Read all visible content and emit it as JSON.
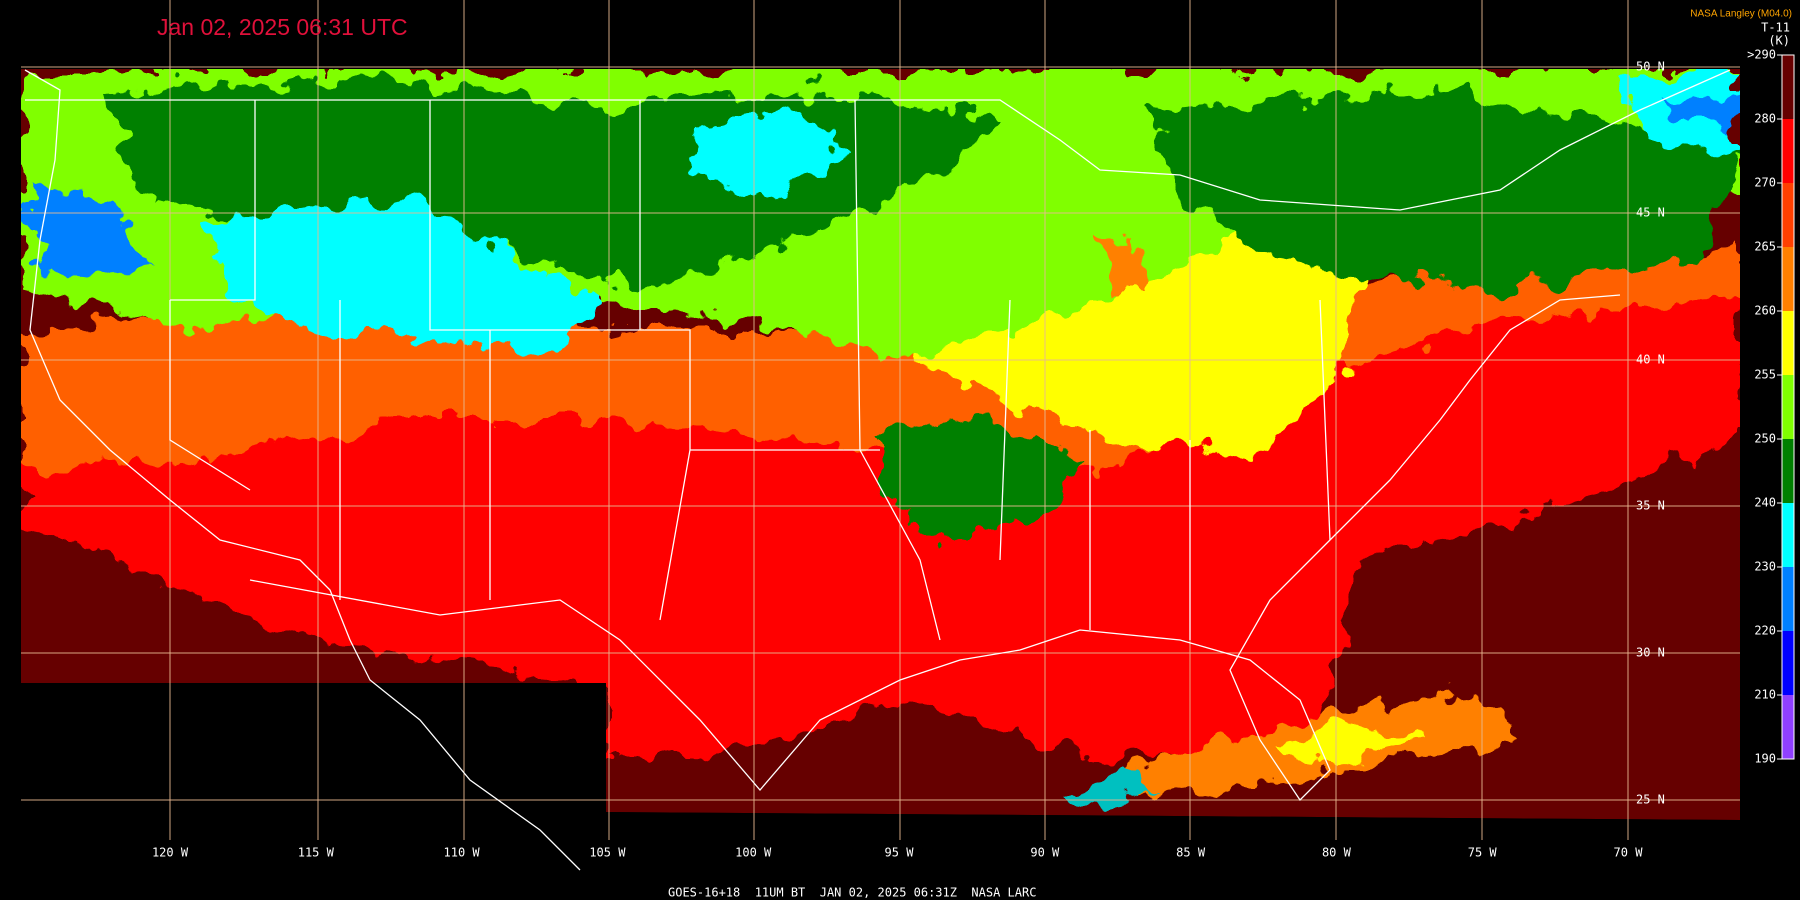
{
  "header": {
    "title": "Jan 02, 2025 06:31 UTC",
    "agency": "NASA Langley (M04.0)"
  },
  "colorbar": {
    "channel": "T-11",
    "unit": "(K)",
    "ticks": [
      {
        "value": 290,
        "label": ">290"
      },
      280,
      270,
      265,
      260,
      255,
      250,
      240,
      230,
      220,
      210,
      190
    ],
    "colors": [
      "#660000",
      "#ff0000",
      "#ff4000",
      "#ff8000",
      "#ffff00",
      "#80ff00",
      "#008000",
      "#00ffff",
      "#0080ff",
      "#0000ff",
      "#9040ff"
    ]
  },
  "grid": {
    "latitudes": [
      "50 N",
      "45 N",
      "40 N",
      "35 N",
      "30 N",
      "25 N"
    ],
    "longitudes": [
      "120 W",
      "115 W",
      "110 W",
      "105 W",
      "100 W",
      "95 W",
      "90 W",
      "85 W",
      "80 W",
      "75 W",
      "70 W"
    ]
  },
  "footer": "GOES-16+18  11UM BT  JAN 02, 2025 06:31Z  NASA LARC"
}
